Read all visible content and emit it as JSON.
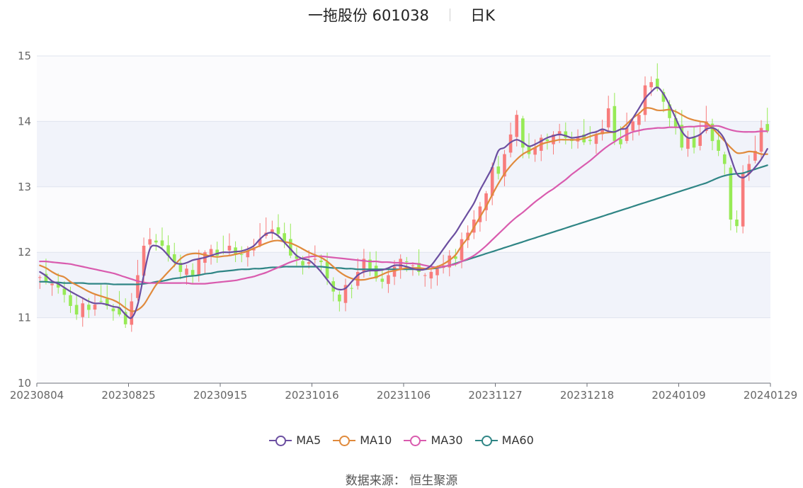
{
  "header": {
    "title": "一拖股份 601038",
    "period": "日K"
  },
  "source": {
    "label": "数据来源：",
    "value": "恒生聚源"
  },
  "colors": {
    "up": "#f87c7c",
    "down": "#97ea56",
    "MA5": "#6b4ea0",
    "MA10": "#e08a3c",
    "MA30": "#d95bae",
    "MA60": "#2f8585"
  },
  "chart_data": {
    "type": "candlestick",
    "title": "一拖股份 601038",
    "ylim": [
      10,
      15
    ],
    "yticks": [
      10,
      11,
      12,
      13,
      14,
      15
    ],
    "xtick_labels": [
      "20230804",
      "20230825",
      "20230915",
      "20231016",
      "20231106",
      "20231127",
      "20231218",
      "20240109",
      "20240129"
    ],
    "xtick_index": [
      0,
      15,
      30,
      45,
      60,
      75,
      90,
      105,
      119
    ],
    "legend": [
      "MA5",
      "MA10",
      "MA30",
      "MA60"
    ],
    "legend_position": "bottom",
    "grid": true,
    "trading_days": 120,
    "close": [
      11.62,
      11.55,
      11.52,
      11.46,
      11.35,
      11.18,
      11.05,
      11.22,
      11.12,
      11.2,
      11.25,
      11.18,
      11.1,
      11.05,
      10.9,
      11.25,
      11.65,
      12.1,
      12.2,
      12.15,
      12.1,
      11.95,
      11.85,
      11.7,
      11.75,
      11.65,
      11.9,
      12.0,
      12.05,
      11.95,
      12.0,
      12.1,
      11.98,
      11.96,
      12.02,
      12.05,
      12.2,
      12.3,
      12.35,
      12.28,
      12.15,
      11.95,
      11.9,
      11.8,
      11.85,
      11.9,
      11.85,
      11.6,
      11.4,
      11.25,
      11.5,
      11.45,
      11.7,
      11.9,
      11.75,
      11.6,
      11.55,
      11.65,
      11.78,
      11.9,
      11.85,
      11.8,
      11.7,
      11.65,
      11.7,
      11.75,
      11.8,
      11.95,
      11.9,
      12.2,
      12.3,
      12.5,
      12.7,
      12.9,
      13.3,
      13.2,
      13.5,
      13.8,
      14.1,
      13.6,
      13.5,
      13.6,
      13.75,
      13.7,
      13.8,
      13.85,
      13.75,
      13.7,
      13.75,
      13.68,
      13.7,
      13.8,
      13.88,
      14.2,
      13.7,
      13.65,
      13.9,
      14.0,
      14.1,
      14.55,
      14.6,
      14.5,
      14.3,
      14.05,
      13.9,
      13.6,
      13.75,
      13.6,
      13.8,
      14.0,
      13.7,
      13.55,
      13.35,
      12.5,
      12.4,
      13.2,
      13.35,
      13.55,
      13.9,
      13.85
    ],
    "series": [
      {
        "name": "MA5",
        "values": [
          11.7,
          11.64,
          11.56,
          11.52,
          11.46,
          11.4,
          11.35,
          11.3,
          11.25,
          11.22,
          11.22,
          11.2,
          11.17,
          11.15,
          11.05,
          11.0,
          11.2,
          11.65,
          12.05,
          12.1,
          12.05,
          11.95,
          11.85,
          11.82,
          11.84,
          11.88,
          11.9,
          11.92,
          11.95,
          11.98,
          12.0,
          12.0,
          12.01,
          12.02,
          12.05,
          12.1,
          12.2,
          12.28,
          12.3,
          12.25,
          12.15,
          12.05,
          11.95,
          11.9,
          11.88,
          11.8,
          11.7,
          11.58,
          11.47,
          11.43,
          11.45,
          11.55,
          11.65,
          11.7,
          11.72,
          11.72,
          11.73,
          11.76,
          11.8,
          11.8,
          11.78,
          11.75,
          11.73,
          11.74,
          11.8,
          11.92,
          12.05,
          12.18,
          12.3,
          12.45,
          12.6,
          12.75,
          12.95,
          13.12,
          13.3,
          13.55,
          13.6,
          13.68,
          13.72,
          13.68,
          13.62,
          13.65,
          13.7,
          13.75,
          13.78,
          13.8,
          13.78,
          13.75,
          13.76,
          13.78,
          13.82,
          13.84,
          13.88,
          13.85,
          13.84,
          13.88,
          13.9,
          14.05,
          14.2,
          14.35,
          14.45,
          14.52,
          14.42,
          14.25,
          14.05,
          13.85,
          13.75,
          13.76,
          13.8,
          13.88,
          13.9,
          13.85,
          13.72,
          13.45,
          13.2,
          13.14,
          13.2,
          13.3,
          13.42,
          13.58
        ]
      },
      {
        "name": "MA10",
        "values": [
          11.8,
          11.76,
          11.7,
          11.65,
          11.62,
          11.55,
          11.5,
          11.45,
          11.4,
          11.36,
          11.33,
          11.3,
          11.27,
          11.22,
          11.15,
          11.1,
          11.12,
          11.2,
          11.35,
          11.5,
          11.6,
          11.7,
          11.8,
          11.9,
          11.96,
          11.98,
          11.98,
          11.96,
          11.94,
          11.93,
          11.94,
          11.95,
          11.97,
          11.99,
          12.02,
          12.06,
          12.1,
          12.14,
          12.17,
          12.18,
          12.16,
          12.14,
          12.1,
          12.05,
          12.0,
          11.96,
          11.92,
          11.86,
          11.78,
          11.7,
          11.64,
          11.6,
          11.58,
          11.58,
          11.6,
          11.62,
          11.66,
          11.7,
          11.72,
          11.74,
          11.76,
          11.76,
          11.76,
          11.75,
          11.75,
          11.78,
          11.82,
          11.88,
          11.96,
          12.1,
          12.22,
          12.38,
          12.54,
          12.7,
          12.88,
          13.05,
          13.2,
          13.32,
          13.42,
          13.5,
          13.55,
          13.6,
          13.65,
          13.68,
          13.7,
          13.72,
          13.72,
          13.72,
          13.72,
          13.74,
          13.77,
          13.8,
          13.82,
          13.83,
          13.84,
          13.88,
          13.96,
          14.05,
          14.12,
          14.2,
          14.2,
          14.17,
          14.17,
          14.18,
          14.15,
          14.1,
          14.05,
          14.02,
          14.0,
          13.98,
          13.9,
          13.8,
          13.7,
          13.6,
          13.52,
          13.52,
          13.54,
          13.53,
          13.5,
          13.5
        ]
      },
      {
        "name": "MA30",
        "values": [
          11.86,
          11.86,
          11.85,
          11.84,
          11.83,
          11.82,
          11.8,
          11.78,
          11.76,
          11.74,
          11.72,
          11.7,
          11.68,
          11.65,
          11.62,
          11.59,
          11.56,
          11.54,
          11.53,
          11.53,
          11.53,
          11.53,
          11.53,
          11.53,
          11.53,
          11.52,
          11.52,
          11.52,
          11.53,
          11.54,
          11.55,
          11.56,
          11.57,
          11.59,
          11.61,
          11.63,
          11.66,
          11.69,
          11.73,
          11.77,
          11.81,
          11.85,
          11.88,
          11.91,
          11.93,
          11.94,
          11.94,
          11.93,
          11.92,
          11.91,
          11.9,
          11.89,
          11.88,
          11.87,
          11.86,
          11.86,
          11.85,
          11.85,
          11.84,
          11.84,
          11.83,
          11.83,
          11.82,
          11.8,
          11.78,
          11.77,
          11.78,
          11.8,
          11.82,
          11.86,
          11.9,
          11.95,
          12.02,
          12.1,
          12.19,
          12.28,
          12.37,
          12.46,
          12.54,
          12.61,
          12.69,
          12.77,
          12.84,
          12.91,
          12.97,
          13.04,
          13.11,
          13.19,
          13.26,
          13.33,
          13.4,
          13.48,
          13.56,
          13.63,
          13.69,
          13.75,
          13.8,
          13.84,
          13.86,
          13.88,
          13.89,
          13.9,
          13.9,
          13.91,
          13.91,
          13.91,
          13.92,
          13.92,
          13.93,
          13.93,
          13.93,
          13.93,
          13.9,
          13.87,
          13.85,
          13.84,
          13.84,
          13.84,
          13.85,
          13.85
        ]
      },
      {
        "name": "MA60",
        "values": [
          11.55,
          11.55,
          11.54,
          11.54,
          11.53,
          11.53,
          11.53,
          11.53,
          11.52,
          11.52,
          11.52,
          11.52,
          11.51,
          11.51,
          11.51,
          11.51,
          11.51,
          11.52,
          11.53,
          11.55,
          11.56,
          11.58,
          11.6,
          11.61,
          11.63,
          11.64,
          11.65,
          11.67,
          11.68,
          11.7,
          11.71,
          11.72,
          11.73,
          11.74,
          11.74,
          11.75,
          11.75,
          11.76,
          11.77,
          11.77,
          11.78,
          11.78,
          11.78,
          11.78,
          11.78,
          11.78,
          11.78,
          11.77,
          11.76,
          11.76,
          11.75,
          11.75,
          11.74,
          11.74,
          11.74,
          11.74,
          11.74,
          11.74,
          11.74,
          11.74,
          11.74,
          11.74,
          11.74,
          11.74,
          11.75,
          11.76,
          11.78,
          11.8,
          11.83,
          11.86,
          11.89,
          11.92,
          11.95,
          11.98,
          12.01,
          12.04,
          12.07,
          12.1,
          12.13,
          12.16,
          12.19,
          12.22,
          12.25,
          12.28,
          12.31,
          12.34,
          12.37,
          12.4,
          12.43,
          12.46,
          12.49,
          12.52,
          12.55,
          12.58,
          12.61,
          12.64,
          12.67,
          12.7,
          12.73,
          12.76,
          12.79,
          12.82,
          12.85,
          12.88,
          12.91,
          12.94,
          12.97,
          13.0,
          13.03,
          13.06,
          13.1,
          13.14,
          13.17,
          13.19,
          13.2,
          13.21,
          13.24,
          13.27,
          13.3,
          13.33
        ]
      }
    ]
  }
}
